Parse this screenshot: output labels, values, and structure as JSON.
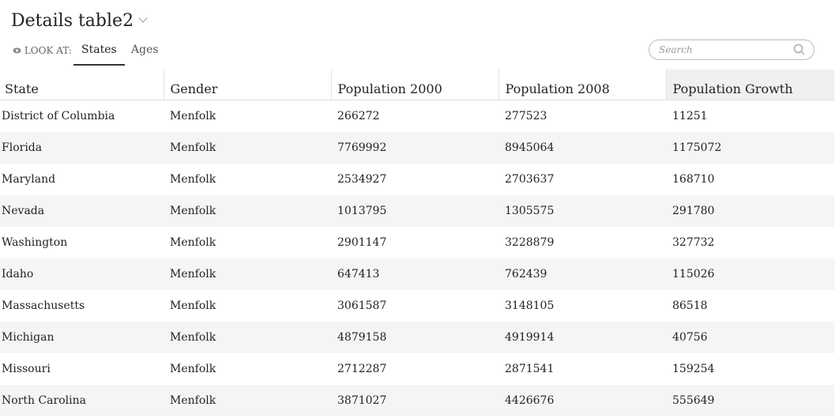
{
  "header": {
    "title": "Details table2",
    "look_at": "LOOK AT:",
    "tabs": [
      "States",
      "Ages"
    ],
    "search_placeholder": "Search"
  },
  "table": {
    "columns": [
      "State",
      "Gender",
      "Population 2000",
      "Population 2008",
      "Population Growth"
    ],
    "rows": [
      [
        "District of Columbia",
        "Menfolk",
        "266272",
        "277523",
        "11251"
      ],
      [
        "Florida",
        "Menfolk",
        "7769992",
        "8945064",
        "1175072"
      ],
      [
        "Maryland",
        "Menfolk",
        "2534927",
        "2703637",
        "168710"
      ],
      [
        "Nevada",
        "Menfolk",
        "1013795",
        "1305575",
        "291780"
      ],
      [
        "Washington",
        "Menfolk",
        "2901147",
        "3228879",
        "327732"
      ],
      [
        "Idaho",
        "Menfolk",
        "647413",
        "762439",
        "115026"
      ],
      [
        "Massachusetts",
        "Menfolk",
        "3061587",
        "3148105",
        "86518"
      ],
      [
        "Michigan",
        "Menfolk",
        "4879158",
        "4919914",
        "40756"
      ],
      [
        "Missouri",
        "Menfolk",
        "2712287",
        "2871541",
        "159254"
      ],
      [
        "North Carolina",
        "Menfolk",
        "3871027",
        "4426676",
        "555649"
      ]
    ]
  }
}
